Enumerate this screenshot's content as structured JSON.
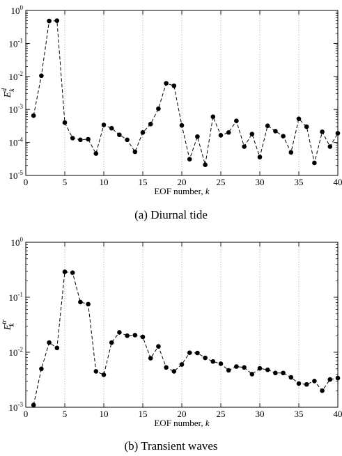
{
  "chart_data": [
    {
      "type": "line",
      "caption": "(a)  Diurnal tide",
      "xlabel": "EOF number, k",
      "ylabel_base": "E",
      "ylabel_sub": "k",
      "ylabel_sup": "d",
      "xlim": [
        0,
        40
      ],
      "ylim": [
        1e-05,
        1
      ],
      "yscale": "log",
      "x_ticks": [
        0,
        5,
        10,
        15,
        20,
        25,
        30,
        35,
        40
      ],
      "y_ticks": [
        "10^-5",
        "10^-4",
        "10^-3",
        "10^-2",
        "10^-1",
        "10^0"
      ],
      "grid": "vertical dotted lines at x ticks",
      "line_style": "dashed black with filled circle markers",
      "x": [
        1,
        2,
        3,
        4,
        5,
        6,
        7,
        8,
        9,
        10,
        11,
        12,
        13,
        14,
        15,
        16,
        17,
        18,
        19,
        20,
        21,
        22,
        23,
        24,
        25,
        26,
        27,
        28,
        29,
        30,
        31,
        32,
        33,
        34,
        35,
        36,
        37,
        38,
        39,
        40
      ],
      "y": [
        0.00065,
        0.0105,
        0.48,
        0.49,
        0.0004,
        0.000135,
        0.00012,
        0.000125,
        4.6e-05,
        0.00034,
        0.00027,
        0.00017,
        0.00012,
        5.2e-05,
        0.0002,
        0.00036,
        0.00105,
        0.0062,
        0.0052,
        0.00033,
        3.1e-05,
        0.00015,
        2.1e-05,
        0.0006,
        0.000165,
        0.0002,
        0.00045,
        7.5e-05,
        0.00018,
        3.6e-05,
        0.00032,
        0.00022,
        0.000155,
        5e-05,
        0.00052,
        0.0003,
        2.4e-05,
        0.00021,
        7.5e-05,
        0.00019
      ]
    },
    {
      "type": "line",
      "caption": "(b)  Transient waves",
      "xlabel": "EOF number, k",
      "ylabel_base": "E",
      "ylabel_sub": "k",
      "ylabel_sup": "tr",
      "xlim": [
        0,
        40
      ],
      "ylim": [
        0.001,
        1
      ],
      "yscale": "log",
      "x_ticks": [
        0,
        5,
        10,
        15,
        20,
        25,
        30,
        35,
        40
      ],
      "y_ticks": [
        "10^-3",
        "10^-2",
        "10^-1",
        "10^0"
      ],
      "grid": "vertical dotted lines at x ticks",
      "line_style": "dashed black with filled circle markers",
      "x": [
        1,
        2,
        3,
        4,
        5,
        6,
        7,
        8,
        9,
        10,
        11,
        12,
        13,
        14,
        15,
        16,
        17,
        18,
        19,
        20,
        21,
        22,
        23,
        24,
        25,
        26,
        27,
        28,
        29,
        30,
        31,
        32,
        33,
        34,
        35,
        36,
        37,
        38,
        39,
        40
      ],
      "y": [
        0.0011,
        0.005,
        0.015,
        0.012,
        0.29,
        0.28,
        0.082,
        0.075,
        0.0045,
        0.0039,
        0.015,
        0.023,
        0.02,
        0.0205,
        0.019,
        0.0078,
        0.0128,
        0.0053,
        0.0045,
        0.006,
        0.0098,
        0.0097,
        0.0079,
        0.0068,
        0.0062,
        0.0047,
        0.0055,
        0.0053,
        0.004,
        0.0051,
        0.0048,
        0.0042,
        0.0042,
        0.0035,
        0.0027,
        0.0026,
        0.003,
        0.002,
        0.0032,
        0.0034
      ]
    }
  ]
}
